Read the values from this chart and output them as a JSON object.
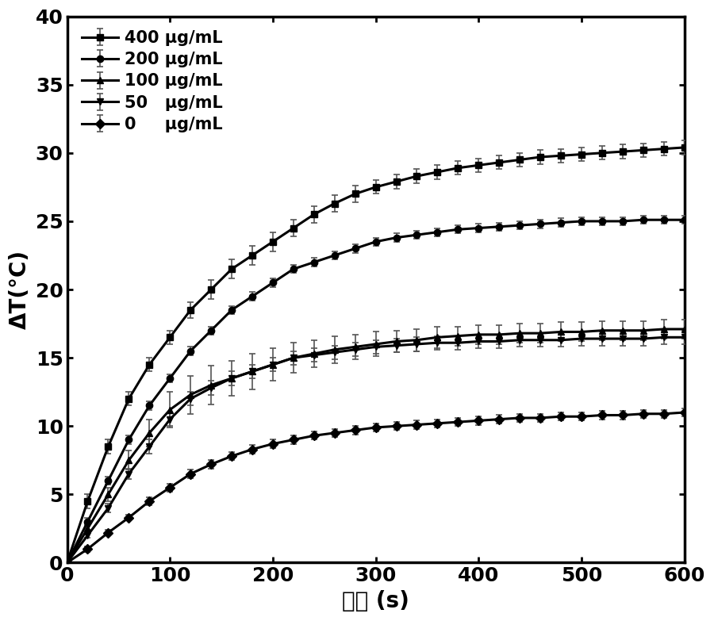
{
  "title": "",
  "xlabel": "时间 (s)",
  "ylabel": "ΔT(°C)",
  "xlim": [
    0,
    600
  ],
  "ylim": [
    0,
    40
  ],
  "xticks": [
    0,
    100,
    200,
    300,
    400,
    500,
    600
  ],
  "yticks": [
    0,
    5,
    10,
    15,
    20,
    25,
    30,
    35,
    40
  ],
  "series": [
    {
      "label": "400 μg/mL",
      "marker": "s",
      "color": "#000000",
      "x": [
        0,
        20,
        40,
        60,
        80,
        100,
        120,
        140,
        160,
        180,
        200,
        220,
        240,
        260,
        280,
        300,
        320,
        340,
        360,
        380,
        400,
        420,
        440,
        460,
        480,
        500,
        520,
        540,
        560,
        580,
        600
      ],
      "y": [
        0,
        4.5,
        8.5,
        12.0,
        14.5,
        16.5,
        18.5,
        20.0,
        21.5,
        22.5,
        23.5,
        24.5,
        25.5,
        26.3,
        27.0,
        27.5,
        27.9,
        28.3,
        28.6,
        28.9,
        29.1,
        29.3,
        29.5,
        29.7,
        29.8,
        29.9,
        30.0,
        30.1,
        30.2,
        30.3,
        30.4
      ],
      "yerr": [
        0,
        0.5,
        0.5,
        0.5,
        0.5,
        0.5,
        0.6,
        0.7,
        0.7,
        0.7,
        0.7,
        0.6,
        0.6,
        0.6,
        0.6,
        0.5,
        0.5,
        0.5,
        0.5,
        0.5,
        0.5,
        0.5,
        0.5,
        0.5,
        0.5,
        0.5,
        0.5,
        0.5,
        0.5,
        0.5,
        0.5
      ]
    },
    {
      "label": "200 μg/mL",
      "marker": "o",
      "color": "#000000",
      "x": [
        0,
        20,
        40,
        60,
        80,
        100,
        120,
        140,
        160,
        180,
        200,
        220,
        240,
        260,
        280,
        300,
        320,
        340,
        360,
        380,
        400,
        420,
        440,
        460,
        480,
        500,
        520,
        540,
        560,
        580,
        600
      ],
      "y": [
        0,
        3.0,
        6.0,
        9.0,
        11.5,
        13.5,
        15.5,
        17.0,
        18.5,
        19.5,
        20.5,
        21.5,
        22.0,
        22.5,
        23.0,
        23.5,
        23.8,
        24.0,
        24.2,
        24.4,
        24.5,
        24.6,
        24.7,
        24.8,
        24.9,
        25.0,
        25.0,
        25.0,
        25.1,
        25.1,
        25.1
      ],
      "yerr": [
        0,
        0.3,
        0.3,
        0.3,
        0.3,
        0.3,
        0.3,
        0.3,
        0.3,
        0.3,
        0.3,
        0.3,
        0.3,
        0.3,
        0.3,
        0.3,
        0.3,
        0.3,
        0.3,
        0.3,
        0.3,
        0.3,
        0.3,
        0.3,
        0.3,
        0.3,
        0.3,
        0.3,
        0.3,
        0.3,
        0.3
      ]
    },
    {
      "label": "100 μg/mL",
      "marker": "^",
      "color": "#000000",
      "x": [
        0,
        20,
        40,
        60,
        80,
        100,
        120,
        140,
        160,
        180,
        200,
        220,
        240,
        260,
        280,
        300,
        320,
        340,
        360,
        380,
        400,
        420,
        440,
        460,
        480,
        500,
        520,
        540,
        560,
        580,
        600
      ],
      "y": [
        0,
        2.5,
        5.0,
        7.5,
        9.5,
        11.2,
        12.3,
        13.0,
        13.5,
        14.0,
        14.5,
        15.0,
        15.3,
        15.6,
        15.8,
        16.0,
        16.2,
        16.3,
        16.5,
        16.6,
        16.7,
        16.7,
        16.8,
        16.8,
        16.9,
        16.9,
        17.0,
        17.0,
        17.0,
        17.1,
        17.1
      ],
      "yerr": [
        0,
        0.3,
        0.5,
        0.7,
        1.0,
        1.3,
        1.4,
        1.4,
        1.3,
        1.3,
        1.2,
        1.1,
        1.0,
        1.0,
        0.9,
        0.9,
        0.8,
        0.8,
        0.8,
        0.7,
        0.7,
        0.7,
        0.7,
        0.7,
        0.7,
        0.7,
        0.7,
        0.7,
        0.7,
        0.7,
        0.7
      ]
    },
    {
      "label": "50   μg/mL",
      "marker": "v",
      "color": "#000000",
      "x": [
        0,
        20,
        40,
        60,
        80,
        100,
        120,
        140,
        160,
        180,
        200,
        220,
        240,
        260,
        280,
        300,
        320,
        340,
        360,
        380,
        400,
        420,
        440,
        460,
        480,
        500,
        520,
        540,
        560,
        580,
        600
      ],
      "y": [
        0,
        2.0,
        4.0,
        6.5,
        8.5,
        10.5,
        12.0,
        12.8,
        13.5,
        14.0,
        14.5,
        15.0,
        15.2,
        15.4,
        15.6,
        15.8,
        15.9,
        16.0,
        16.1,
        16.1,
        16.2,
        16.2,
        16.3,
        16.3,
        16.3,
        16.4,
        16.4,
        16.4,
        16.4,
        16.5,
        16.5
      ],
      "yerr": [
        0,
        0.2,
        0.3,
        0.4,
        0.5,
        0.5,
        0.5,
        0.5,
        0.5,
        0.5,
        0.5,
        0.5,
        0.5,
        0.5,
        0.5,
        0.5,
        0.5,
        0.5,
        0.5,
        0.5,
        0.5,
        0.5,
        0.5,
        0.5,
        0.5,
        0.5,
        0.5,
        0.5,
        0.5,
        0.5,
        0.5
      ]
    },
    {
      "label": "0     μg/mL",
      "marker": "D",
      "color": "#000000",
      "x": [
        0,
        20,
        40,
        60,
        80,
        100,
        120,
        140,
        160,
        180,
        200,
        220,
        240,
        260,
        280,
        300,
        320,
        340,
        360,
        380,
        400,
        420,
        440,
        460,
        480,
        500,
        520,
        540,
        560,
        580,
        600
      ],
      "y": [
        0,
        1.0,
        2.2,
        3.3,
        4.5,
        5.5,
        6.5,
        7.2,
        7.8,
        8.3,
        8.7,
        9.0,
        9.3,
        9.5,
        9.7,
        9.9,
        10.0,
        10.1,
        10.2,
        10.3,
        10.4,
        10.5,
        10.6,
        10.6,
        10.7,
        10.7,
        10.8,
        10.8,
        10.9,
        10.9,
        11.0
      ],
      "yerr": [
        0,
        0.2,
        0.2,
        0.2,
        0.3,
        0.3,
        0.3,
        0.3,
        0.3,
        0.3,
        0.3,
        0.3,
        0.3,
        0.3,
        0.3,
        0.3,
        0.3,
        0.3,
        0.3,
        0.3,
        0.3,
        0.3,
        0.3,
        0.3,
        0.3,
        0.3,
        0.3,
        0.3,
        0.3,
        0.3,
        0.3
      ]
    }
  ],
  "linewidth": 2.2,
  "markersize": 6,
  "legend_fontsize": 15,
  "axis_label_fontsize": 20,
  "tick_fontsize": 18,
  "elinewidth": 1.2,
  "capsize": 3,
  "figsize": [
    9.0,
    7.83
  ],
  "dpi": 100
}
